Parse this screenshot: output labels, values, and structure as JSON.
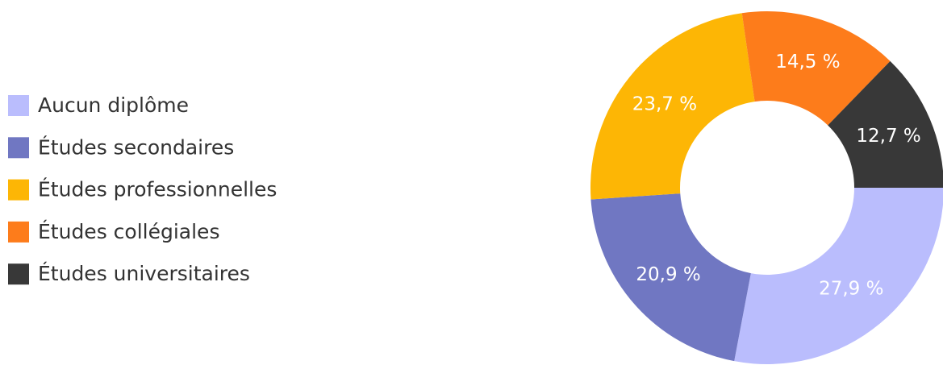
{
  "chart_data": {
    "type": "donut",
    "categories": [
      "Aucun diplôme",
      "Études secondaires",
      "Études professionnelles",
      "Études collégiales",
      "Études universitaires"
    ],
    "values": [
      27.9,
      20.9,
      23.7,
      14.5,
      12.7
    ],
    "value_labels": [
      "27,9 %",
      "20,9 %",
      "23,7 %",
      "14,5 %",
      "12,7 %"
    ],
    "colors": [
      "#babdfd",
      "#7077c2",
      "#fdb605",
      "#fd7c1b",
      "#383838"
    ],
    "legend": "left"
  }
}
